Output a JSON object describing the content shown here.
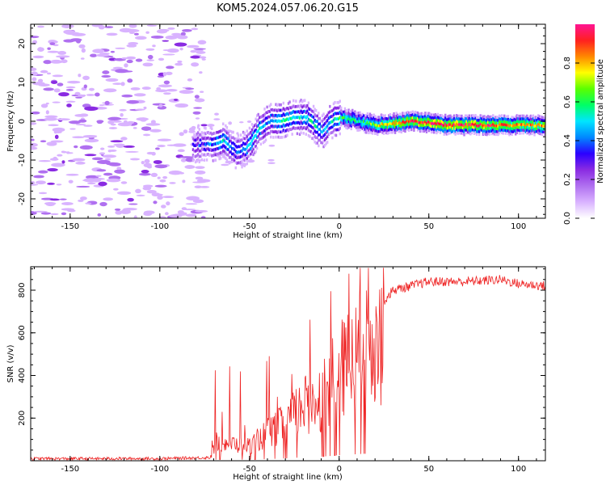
{
  "title": "KOM5.2024.057.06.20.G15",
  "colors": {
    "snr_line": "#ee2222",
    "spectral_ramp": [
      "#ffffff",
      "#d9b3ff",
      "#b070f0",
      "#8a2be2",
      "#2b00ff",
      "#0088ff",
      "#00e5ff",
      "#00ff66",
      "#5aff00",
      "#ffff00",
      "#ff8800",
      "#ff2020",
      "#ff1493"
    ]
  },
  "chart_data": [
    {
      "type": "heatmap",
      "xlabel": "Height of straight line (km)",
      "ylabel": "Frequency (Hz)",
      "xlim": [
        -172,
        115
      ],
      "ylim": [
        -25,
        25
      ],
      "xticks": [
        -150,
        -100,
        -50,
        0,
        50,
        100
      ],
      "yticks": [
        -20,
        -10,
        0,
        10,
        20
      ],
      "grid": false,
      "colorbar": {
        "label": "Normalized spectral amplitude",
        "range": [
          0,
          1
        ],
        "ticks": [
          "0.0",
          "0.2",
          "0.4",
          "0.6",
          "0.8"
        ]
      },
      "ridge": {
        "description_x": [
          -80,
          -72,
          -65,
          -58,
          -52,
          -45,
          -40,
          -33,
          -25,
          -18,
          -10,
          -5,
          0,
          10,
          20,
          40,
          60,
          80,
          100,
          115
        ],
        "center_freq_hz": [
          -6,
          -6,
          -5,
          -8,
          -7,
          -2,
          0,
          0,
          1,
          1,
          -3,
          0,
          1,
          0,
          -1,
          0,
          -1,
          -1,
          -1,
          -1
        ],
        "amplitude": [
          0.3,
          0.4,
          0.5,
          0.4,
          0.45,
          0.5,
          0.4,
          0.55,
          0.5,
          0.5,
          0.45,
          0.5,
          0.6,
          0.55,
          0.7,
          0.9,
          0.95,
          0.9,
          0.85,
          0.8
        ]
      }
    },
    {
      "type": "line",
      "xlabel": "Height of straight line (km)",
      "ylabel": "SNR (v/v)",
      "xlim": [
        -172,
        115
      ],
      "ylim": [
        0,
        910
      ],
      "xticks": [
        -150,
        -100,
        -50,
        0,
        50,
        100
      ],
      "yticks": [
        200,
        400,
        600,
        800
      ],
      "grid": false,
      "envelope": {
        "x": [
          -172,
          -100,
          -72,
          -68,
          -60,
          -50,
          -40,
          -30,
          -20,
          -10,
          0,
          10,
          20,
          30,
          50,
          70,
          90,
          100,
          115
        ],
        "y": [
          10,
          10,
          15,
          120,
          100,
          90,
          160,
          220,
          320,
          380,
          520,
          620,
          700,
          800,
          840,
          840,
          850,
          830,
          820
        ]
      }
    }
  ]
}
